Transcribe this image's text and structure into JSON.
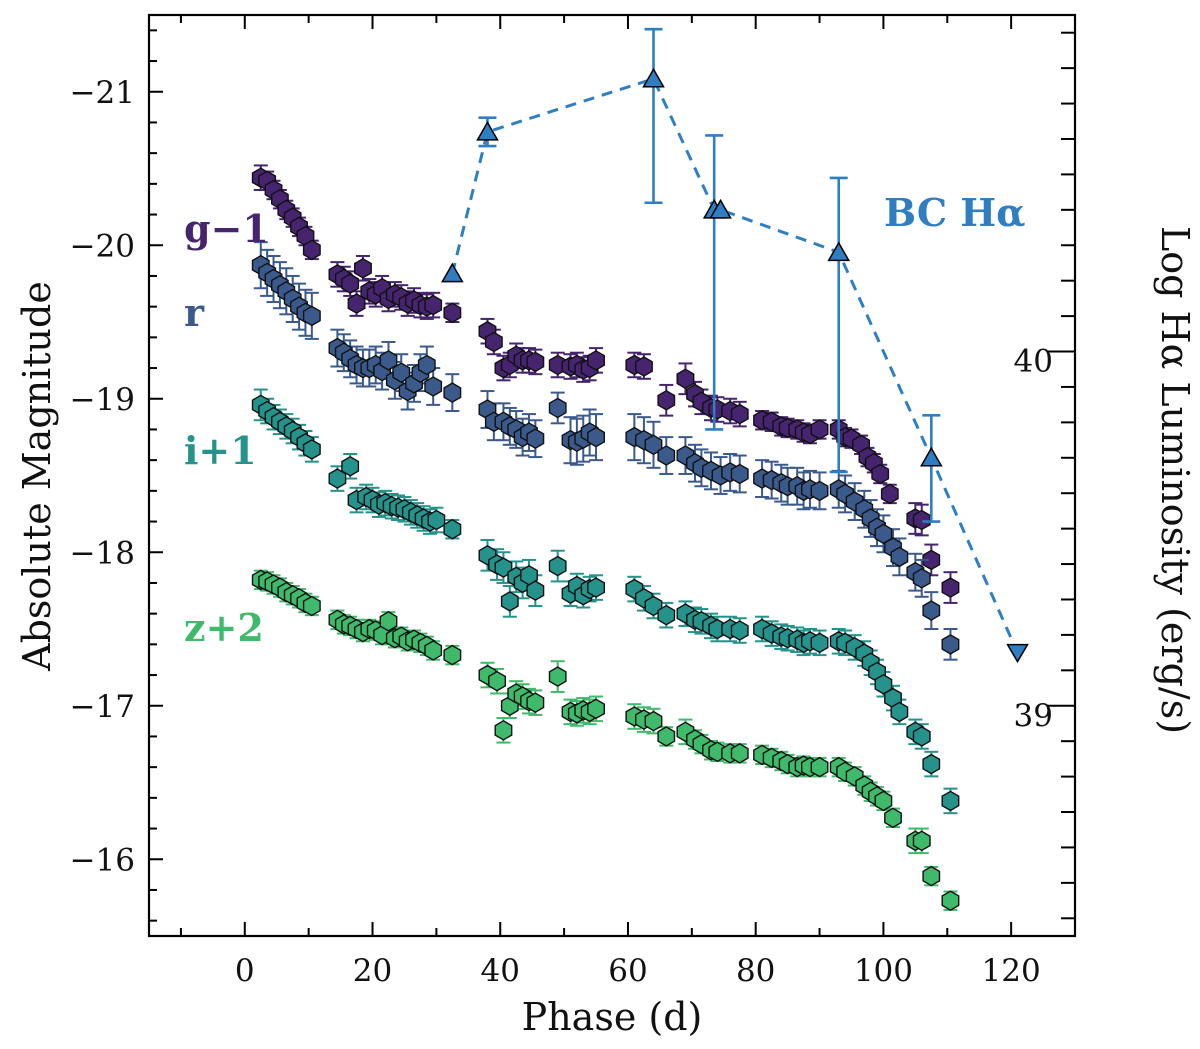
{
  "chart_data": {
    "type": "scatter",
    "xlabel": "Phase (d)",
    "ylabel": "Absolute Magnitude",
    "ylabel_right": "Log Hα Luminosity (erg/s)",
    "xlim": [
      -15,
      130
    ],
    "ylim": [
      -15.5,
      -21.5
    ],
    "ylim_right": [
      38.35,
      40.95
    ],
    "xticks": [
      "0",
      "20",
      "40",
      "60",
      "80",
      "100",
      "120"
    ],
    "yticks": [
      "−16",
      "−17",
      "−18",
      "−19",
      "−20",
      "−21"
    ],
    "yticks_right": [
      "39",
      "40"
    ],
    "series": [
      {
        "name": "g−1",
        "color": "#46246f",
        "x": [
          2.5,
          3.5,
          4.5,
          5.5,
          6.5,
          7.5,
          8.5,
          9.5,
          10.5,
          14.5,
          15.5,
          16.5,
          17.5,
          18.5,
          19.5,
          20.5,
          21.5,
          22.5,
          23.5,
          24.5,
          25.5,
          26.5,
          27.5,
          28.5,
          29.5,
          32.5,
          38.0,
          39.0,
          40.5,
          41.5,
          42.5,
          43.5,
          44.5,
          45.5,
          49.0,
          51.0,
          52.0,
          53.0,
          54.0,
          55.0,
          61.0,
          62.5,
          66.0,
          69.0,
          70.5,
          71.5,
          73.0,
          74.0,
          76.0,
          77.5,
          81.0,
          82.5,
          84.0,
          85.0,
          86.5,
          87.5,
          88.5,
          90.0,
          93.0,
          94.0,
          95.0,
          96.5,
          97.5,
          98.5,
          99.5,
          101.0,
          105.0,
          106.0,
          107.5,
          110.5
        ],
        "y": [
          -20.44,
          -20.42,
          -20.36,
          -20.3,
          -20.23,
          -20.18,
          -20.12,
          -20.06,
          -19.97,
          -19.81,
          -19.78,
          -19.75,
          -19.62,
          -19.85,
          -19.7,
          -19.68,
          -19.72,
          -19.65,
          -19.68,
          -19.66,
          -19.62,
          -19.64,
          -19.61,
          -19.6,
          -19.61,
          -19.56,
          -19.44,
          -19.37,
          -19.2,
          -19.22,
          -19.28,
          -19.25,
          -19.25,
          -19.24,
          -19.22,
          -19.21,
          -19.22,
          -19.19,
          -19.2,
          -19.25,
          -19.22,
          -19.21,
          -18.99,
          -19.13,
          -19.03,
          -18.98,
          -18.94,
          -18.93,
          -18.92,
          -18.9,
          -18.86,
          -18.85,
          -18.82,
          -18.81,
          -18.8,
          -18.78,
          -18.77,
          -18.8,
          -18.8,
          -18.75,
          -18.74,
          -18.7,
          -18.62,
          -18.58,
          -18.51,
          -18.38,
          -18.22,
          -18.21,
          -17.95,
          -17.77
        ],
        "err": [
          0.08,
          0.06,
          0.06,
          0.06,
          0.06,
          0.06,
          0.06,
          0.06,
          0.06,
          0.08,
          0.08,
          0.08,
          0.08,
          0.08,
          0.08,
          0.08,
          0.08,
          0.08,
          0.08,
          0.08,
          0.08,
          0.08,
          0.08,
          0.08,
          0.08,
          0.06,
          0.08,
          0.08,
          0.08,
          0.08,
          0.08,
          0.08,
          0.08,
          0.08,
          0.08,
          0.08,
          0.08,
          0.08,
          0.08,
          0.08,
          0.08,
          0.08,
          0.1,
          0.1,
          0.08,
          0.08,
          0.08,
          0.08,
          0.08,
          0.08,
          0.06,
          0.06,
          0.06,
          0.06,
          0.06,
          0.06,
          0.06,
          0.06,
          0.06,
          0.06,
          0.06,
          0.06,
          0.06,
          0.06,
          0.06,
          0.06,
          0.1,
          0.1,
          0.1,
          0.1
        ]
      },
      {
        "name": "r",
        "color": "#3a5a8c",
        "x": [
          2.5,
          3.5,
          4.5,
          5.5,
          6.5,
          7.5,
          8.5,
          9.5,
          10.5,
          14.5,
          15.5,
          16.5,
          17.5,
          18.5,
          19.5,
          20.5,
          21.5,
          22.5,
          23.5,
          24.5,
          25.5,
          26.5,
          27.5,
          28.5,
          29.5,
          32.5,
          38.0,
          39.0,
          40.5,
          41.5,
          42.5,
          43.5,
          44.5,
          45.5,
          49.0,
          51.0,
          52.0,
          53.0,
          54.0,
          55.0,
          61.0,
          62.5,
          64.0,
          66.0,
          69.0,
          70.5,
          71.5,
          73.0,
          74.5,
          76.0,
          77.5,
          81.0,
          82.5,
          84.0,
          85.0,
          86.5,
          87.5,
          88.5,
          90.0,
          93.0,
          94.0,
          95.5,
          97.0,
          98.0,
          99.0,
          100.0,
          101.5,
          102.5,
          105.0,
          106.0,
          107.5,
          110.5
        ],
        "y": [
          -19.87,
          -19.82,
          -19.78,
          -19.74,
          -19.7,
          -19.65,
          -19.6,
          -19.56,
          -19.54,
          -19.33,
          -19.3,
          -19.26,
          -19.22,
          -19.2,
          -19.2,
          -19.22,
          -19.18,
          -19.25,
          -19.12,
          -19.17,
          -19.05,
          -19.1,
          -19.17,
          -19.22,
          -19.08,
          -19.04,
          -18.93,
          -18.85,
          -18.85,
          -18.82,
          -18.8,
          -18.75,
          -18.78,
          -18.74,
          -18.94,
          -18.73,
          -18.72,
          -18.74,
          -18.78,
          -18.75,
          -18.75,
          -18.73,
          -18.7,
          -18.63,
          -18.63,
          -18.58,
          -18.55,
          -18.53,
          -18.5,
          -18.52,
          -18.51,
          -18.48,
          -18.47,
          -18.45,
          -18.43,
          -18.43,
          -18.4,
          -18.41,
          -18.4,
          -18.41,
          -18.38,
          -18.33,
          -18.28,
          -18.22,
          -18.16,
          -18.12,
          -18.03,
          -17.97,
          -17.87,
          -17.83,
          -17.62,
          -17.4
        ],
        "err": [
          0.15,
          0.15,
          0.15,
          0.15,
          0.15,
          0.15,
          0.15,
          0.15,
          0.15,
          0.12,
          0.12,
          0.12,
          0.12,
          0.12,
          0.12,
          0.12,
          0.12,
          0.12,
          0.12,
          0.12,
          0.12,
          0.12,
          0.12,
          0.12,
          0.12,
          0.12,
          0.12,
          0.12,
          0.12,
          0.12,
          0.12,
          0.12,
          0.12,
          0.12,
          0.1,
          0.15,
          0.15,
          0.15,
          0.15,
          0.15,
          0.15,
          0.15,
          0.15,
          0.12,
          0.12,
          0.12,
          0.12,
          0.12,
          0.12,
          0.12,
          0.12,
          0.12,
          0.12,
          0.12,
          0.12,
          0.12,
          0.12,
          0.12,
          0.12,
          0.12,
          0.12,
          0.12,
          0.12,
          0.12,
          0.12,
          0.12,
          0.12,
          0.12,
          0.12,
          0.12,
          0.12,
          0.1
        ]
      },
      {
        "name": "i+1",
        "color": "#25938b",
        "x": [
          2.5,
          3.5,
          4.5,
          5.5,
          6.5,
          7.5,
          8.5,
          9.5,
          10.5,
          14.5,
          16.5,
          17.5,
          19.0,
          20.0,
          21.0,
          22.0,
          23.0,
          24.0,
          25.0,
          26.0,
          27.0,
          28.0,
          29.0,
          30.0,
          32.5,
          38.0,
          39.5,
          40.5,
          41.5,
          42.5,
          43.5,
          44.5,
          45.5,
          49.0,
          51.0,
          52.0,
          53.0,
          54.0,
          55.0,
          61.0,
          62.5,
          64.0,
          66.0,
          69.0,
          70.5,
          71.5,
          73.0,
          74.0,
          76.0,
          77.5,
          81.0,
          82.5,
          84.0,
          85.0,
          86.5,
          87.5,
          88.5,
          90.0,
          93.0,
          94.0,
          95.5,
          97.0,
          98.0,
          99.0,
          100.0,
          101.5,
          102.5,
          105.0,
          106.0,
          107.5,
          110.5
        ],
        "y": [
          -18.96,
          -18.92,
          -18.88,
          -18.85,
          -18.82,
          -18.79,
          -18.75,
          -18.71,
          -18.67,
          -18.48,
          -18.56,
          -18.34,
          -18.36,
          -18.34,
          -18.31,
          -18.32,
          -18.3,
          -18.29,
          -18.28,
          -18.26,
          -18.24,
          -18.22,
          -18.2,
          -18.21,
          -18.15,
          -17.98,
          -17.92,
          -17.9,
          -17.68,
          -17.84,
          -17.8,
          -17.85,
          -17.75,
          -17.91,
          -17.73,
          -17.78,
          -17.72,
          -17.76,
          -17.77,
          -17.76,
          -17.7,
          -17.65,
          -17.59,
          -17.6,
          -17.56,
          -17.55,
          -17.52,
          -17.5,
          -17.5,
          -17.49,
          -17.5,
          -17.47,
          -17.45,
          -17.44,
          -17.43,
          -17.41,
          -17.42,
          -17.41,
          -17.42,
          -17.41,
          -17.38,
          -17.34,
          -17.28,
          -17.22,
          -17.14,
          -17.05,
          -16.96,
          -16.83,
          -16.8,
          -16.62,
          -16.38
        ],
        "err": [
          0.1,
          0.08,
          0.08,
          0.08,
          0.08,
          0.08,
          0.08,
          0.08,
          0.08,
          0.08,
          0.08,
          0.08,
          0.08,
          0.08,
          0.08,
          0.08,
          0.08,
          0.08,
          0.08,
          0.08,
          0.08,
          0.08,
          0.08,
          0.08,
          0.06,
          0.1,
          0.1,
          0.1,
          0.1,
          0.1,
          0.1,
          0.1,
          0.1,
          0.1,
          0.08,
          0.08,
          0.08,
          0.08,
          0.08,
          0.08,
          0.08,
          0.08,
          0.08,
          0.08,
          0.08,
          0.08,
          0.08,
          0.08,
          0.08,
          0.08,
          0.08,
          0.08,
          0.08,
          0.08,
          0.08,
          0.08,
          0.08,
          0.08,
          0.08,
          0.08,
          0.08,
          0.08,
          0.08,
          0.08,
          0.08,
          0.08,
          0.08,
          0.08,
          0.08,
          0.08,
          0.08
        ]
      },
      {
        "name": "z+2",
        "color": "#3fba6a",
        "x": [
          2.5,
          3.5,
          4.5,
          5.5,
          6.5,
          7.5,
          8.5,
          9.5,
          10.5,
          14.5,
          15.5,
          16.5,
          17.5,
          18.5,
          19.5,
          20.5,
          21.5,
          22.5,
          23.5,
          24.5,
          25.5,
          26.5,
          27.5,
          28.5,
          29.5,
          32.5,
          38.0,
          39.5,
          40.5,
          41.5,
          42.5,
          43.5,
          44.5,
          45.5,
          49.0,
          51.0,
          52.0,
          53.0,
          54.0,
          55.0,
          61.0,
          62.5,
          64.0,
          66.0,
          69.0,
          70.5,
          71.5,
          73.0,
          74.0,
          76.0,
          77.5,
          81.0,
          82.5,
          84.0,
          85.0,
          86.5,
          87.5,
          88.5,
          90.0,
          93.0,
          94.0,
          95.5,
          97.0,
          98.0,
          99.0,
          100.0,
          101.5,
          105.0,
          106.0,
          107.5,
          110.5
        ],
        "y": [
          -17.82,
          -17.81,
          -17.79,
          -17.77,
          -17.74,
          -17.72,
          -17.7,
          -17.67,
          -17.65,
          -17.56,
          -17.53,
          -17.52,
          -17.5,
          -17.48,
          -17.5,
          -17.49,
          -17.46,
          -17.55,
          -17.44,
          -17.45,
          -17.42,
          -17.43,
          -17.41,
          -17.39,
          -17.36,
          -17.33,
          -17.2,
          -17.16,
          -16.84,
          -17.0,
          -17.08,
          -17.06,
          -17.03,
          -17.02,
          -17.19,
          -16.96,
          -16.95,
          -16.97,
          -16.96,
          -16.98,
          -16.93,
          -16.91,
          -16.9,
          -16.8,
          -16.83,
          -16.78,
          -16.75,
          -16.71,
          -16.7,
          -16.69,
          -16.69,
          -16.68,
          -16.66,
          -16.64,
          -16.62,
          -16.6,
          -16.61,
          -16.6,
          -16.6,
          -16.6,
          -16.57,
          -16.54,
          -16.48,
          -16.44,
          -16.41,
          -16.38,
          -16.27,
          -16.12,
          -16.12,
          -15.89,
          -15.73
        ],
        "err": [
          0.06,
          0.06,
          0.06,
          0.06,
          0.06,
          0.06,
          0.06,
          0.06,
          0.06,
          0.06,
          0.06,
          0.06,
          0.06,
          0.06,
          0.06,
          0.06,
          0.06,
          0.06,
          0.06,
          0.06,
          0.06,
          0.06,
          0.06,
          0.06,
          0.06,
          0.06,
          0.08,
          0.08,
          0.08,
          0.08,
          0.08,
          0.08,
          0.08,
          0.08,
          0.1,
          0.08,
          0.08,
          0.08,
          0.08,
          0.08,
          0.08,
          0.08,
          0.08,
          0.06,
          0.08,
          0.06,
          0.06,
          0.06,
          0.06,
          0.06,
          0.06,
          0.06,
          0.06,
          0.06,
          0.06,
          0.06,
          0.06,
          0.06,
          0.06,
          0.06,
          0.06,
          0.06,
          0.06,
          0.06,
          0.06,
          0.06,
          0.06,
          0.08,
          0.08,
          0.06,
          0.06
        ]
      },
      {
        "name": "BC Hα",
        "color": "#2f7ec2",
        "axis": "right",
        "x": [
          32.5,
          38.0,
          64.0,
          73.5,
          74.5,
          93.0,
          107.5,
          121.0
        ],
        "y": [
          40.22,
          40.62,
          40.77,
          40.4,
          40.4,
          40.28,
          39.7,
          39.15
        ],
        "err_low": [
          0,
          0.04,
          0.35,
          0.62,
          0,
          0.62,
          0.18,
          0
        ],
        "err_high": [
          0,
          0.04,
          0.14,
          0.21,
          0,
          0.21,
          0.12,
          0
        ],
        "markers": [
          "up",
          "up",
          "up",
          "up",
          "up",
          "up",
          "up",
          "down"
        ],
        "linestyle": "dashed"
      }
    ]
  }
}
